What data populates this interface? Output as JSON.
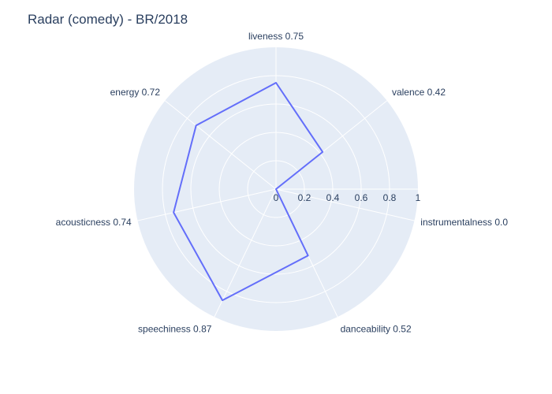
{
  "chart_data": {
    "type": "radar",
    "title": "Radar (comedy) - BR/2018",
    "categories": [
      "liveness",
      "valence",
      "instrumentalness",
      "danceability",
      "speechiness",
      "acousticness",
      "energy"
    ],
    "values": [
      0.75,
      0.42,
      0.0,
      0.52,
      0.87,
      0.74,
      0.72
    ],
    "axis_labels": [
      "liveness 0.75",
      "valence 0.42",
      "instrumentalness 0.0",
      "danceability 0.52",
      "speechiness 0.87",
      "acousticness 0.74",
      "energy 0.72"
    ],
    "radial_range": [
      0,
      1
    ],
    "radial_ticks": [
      0,
      0.2,
      0.4,
      0.6,
      0.8,
      1
    ],
    "radial_tick_labels": [
      "0",
      "0.2",
      "0.4",
      "0.6",
      "0.8",
      "1"
    ],
    "grid": true,
    "colors": {
      "line": "#636efa",
      "polar_bg": "#e5ecf6",
      "grid": "#ffffff",
      "text": "#2a3f5f"
    }
  }
}
